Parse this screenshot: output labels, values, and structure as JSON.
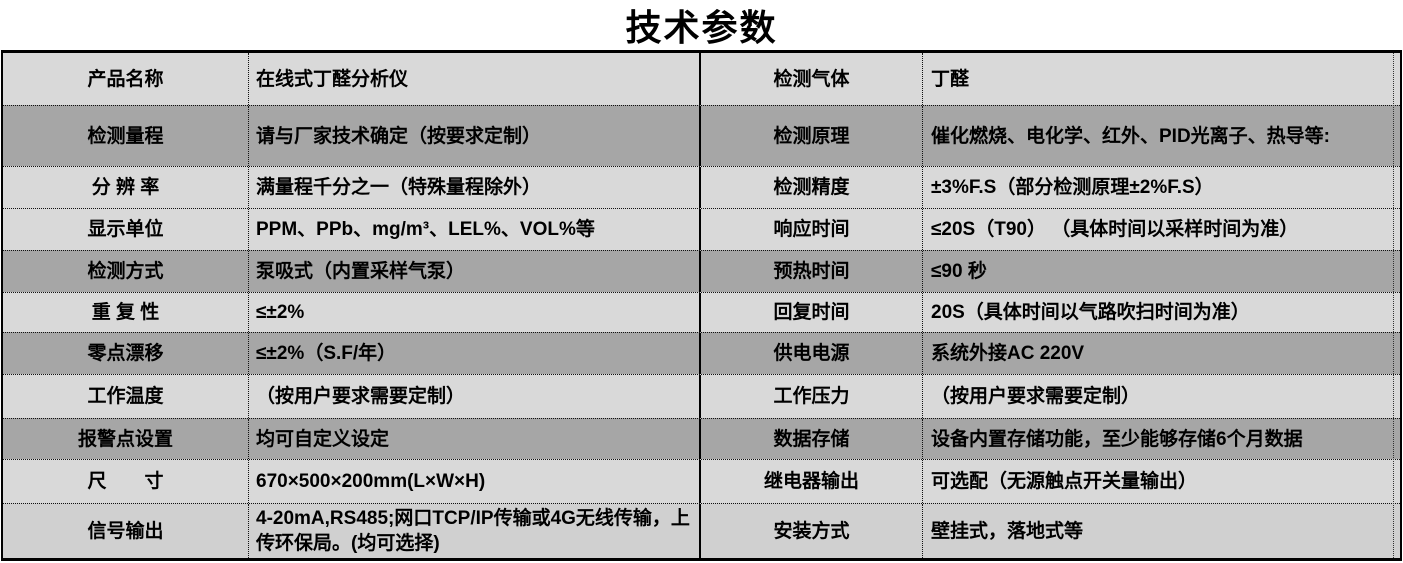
{
  "title": "技术参数",
  "colors": {
    "row_light": "#d9d9d9",
    "row_dark": "#a6a6a6",
    "row_last": "#d0d0d0",
    "border": "#000000",
    "text": "#000000"
  },
  "table": {
    "rows": [
      {
        "label_left": "产品名称",
        "value_left": "在线式丁醛分析仪",
        "label_right": "检测气体",
        "value_right": "丁醛"
      },
      {
        "label_left": "检测量程",
        "value_left": "请与厂家技术确定（按要求定制）",
        "label_right": "检测原理",
        "value_right": "催化燃烧、电化学、红外、PID光离子、热导等:"
      },
      {
        "label_left": "分 辨 率",
        "value_left": "满量程千分之一（特殊量程除外）",
        "label_right": "检测精度",
        "value_right": "±3%F.S（部分检测原理±2%F.S）"
      },
      {
        "label_left": "显示单位",
        "value_left": "PPM、PPb、mg/m³、LEL%、VOL%等",
        "label_right": "响应时间",
        "value_right": "≤20S（T90） （具体时间以采样时间为准）"
      },
      {
        "label_left": "检测方式",
        "value_left": "泵吸式（内置采样气泵）",
        "label_right": "预热时间",
        "value_right": "≤90 秒"
      },
      {
        "label_left": "重 复 性",
        "value_left": "≤±2%",
        "label_right": "回复时间",
        "value_right": "20S（具体时间以气路吹扫时间为准）"
      },
      {
        "label_left": "零点漂移",
        "value_left": "≤±2%（S.F/年）",
        "label_right": "供电电源",
        "value_right": "系统外接AC 220V"
      },
      {
        "label_left": "工作温度",
        "value_left": "（按用户要求需要定制）",
        "label_right": "工作压力",
        "value_right": "（按用户要求需要定制）"
      },
      {
        "label_left": "报警点设置",
        "value_left": "均可自定义设定",
        "label_right": "数据存储",
        "value_right": "设备内置存储功能，至少能够存储6个月数据"
      },
      {
        "label_left": "尺　　寸",
        "value_left": "670×500×200mm(L×W×H)",
        "label_right": "继电器输出",
        "value_right": "可选配（无源触点开关量输出）"
      },
      {
        "label_left": "信号输出",
        "value_left": "4-20mA,RS485;网口TCP/IP传输或4G无线传输，上传环保局。(均可选择)",
        "label_right": "安装方式",
        "value_right": "壁挂式，落地式等"
      }
    ]
  }
}
